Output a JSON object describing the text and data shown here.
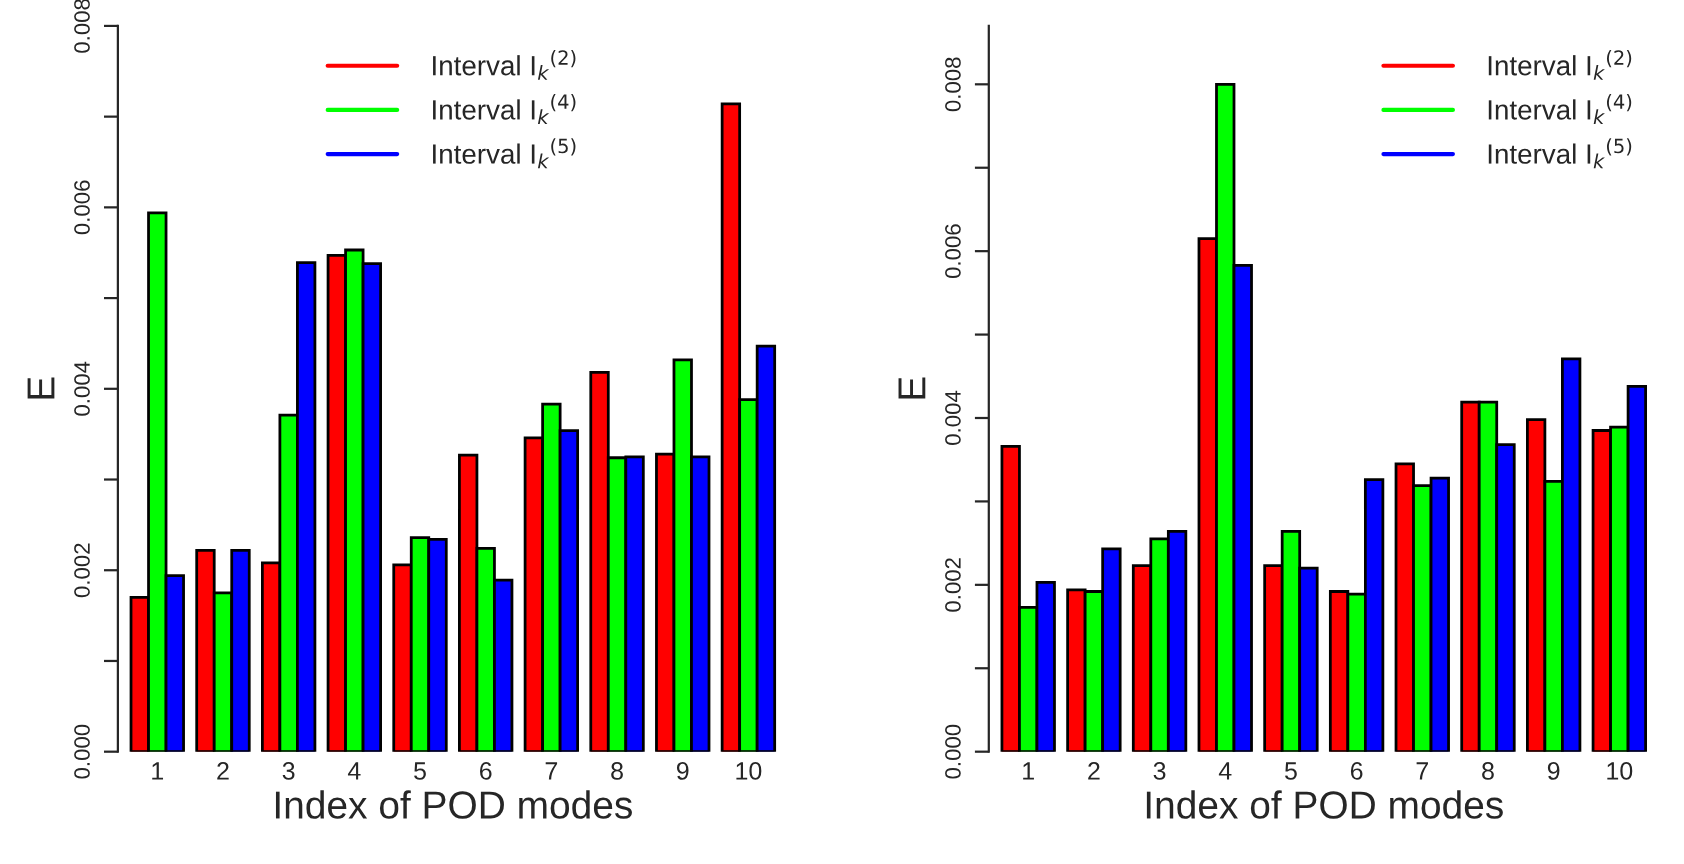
{
  "chart_data": [
    {
      "type": "bar",
      "xlabel": "Index of POD modes",
      "ylabel": "E",
      "categories": [
        "1",
        "2",
        "3",
        "4",
        "5",
        "6",
        "7",
        "8",
        "9",
        "10"
      ],
      "series": [
        {
          "name": "Interval I$_{k}$$^{(2)}$",
          "color": "#ff0000",
          "values": [
            0.0017,
            0.00222,
            0.00208,
            0.00547,
            0.00206,
            0.00327,
            0.00346,
            0.00418,
            0.00328,
            0.00714
          ]
        },
        {
          "name": "Interval I$_{k}$$^{(4)}$",
          "color": "#00ff00",
          "values": [
            0.00594,
            0.00175,
            0.00371,
            0.00553,
            0.00236,
            0.00224,
            0.00383,
            0.00324,
            0.00432,
            0.00388
          ]
        },
        {
          "name": "Interval I$_{k}$$^{(5)}$",
          "color": "#0000ff",
          "values": [
            0.00194,
            0.00222,
            0.00539,
            0.00538,
            0.00234,
            0.00189,
            0.00354,
            0.00325,
            0.00325,
            0.00447
          ]
        }
      ],
      "ylim": [
        0,
        0.008
      ],
      "yticks": [
        {
          "value": 0,
          "label": "0.000"
        },
        {
          "value": 0.001,
          "label": null
        },
        {
          "value": 0.002,
          "label": "0.002"
        },
        {
          "value": 0.003,
          "label": null
        },
        {
          "value": 0.004,
          "label": "0.004"
        },
        {
          "value": 0.005,
          "label": null
        },
        {
          "value": 0.006,
          "label": "0.006"
        },
        {
          "value": 0.007,
          "label": null
        },
        {
          "value": 0.008,
          "label": "0.008"
        }
      ],
      "grid": false,
      "legend": "top"
    },
    {
      "type": "bar",
      "xlabel": "Index of POD modes",
      "ylabel": "E",
      "categories": [
        "1",
        "2",
        "3",
        "4",
        "5",
        "6",
        "7",
        "8",
        "9",
        "10"
      ],
      "series": [
        {
          "name": "Interval I$_{k}$$^{(2)}$",
          "color": "#ff0000",
          "values": [
            0.00366,
            0.00194,
            0.00223,
            0.00615,
            0.00223,
            0.00192,
            0.00345,
            0.00419,
            0.00398,
            0.00385
          ]
        },
        {
          "name": "Interval I$_{k}$$^{(4)}$",
          "color": "#00ff00",
          "values": [
            0.00173,
            0.00192,
            0.00255,
            0.008,
            0.00264,
            0.00189,
            0.00319,
            0.00419,
            0.00324,
            0.00389
          ]
        },
        {
          "name": "Interval I$_{k}$$^{(5)}$",
          "color": "#0000ff",
          "values": [
            0.00203,
            0.00243,
            0.00264,
            0.00583,
            0.0022,
            0.00326,
            0.00328,
            0.00368,
            0.00471,
            0.00438
          ]
        }
      ],
      "ylim": [
        0,
        0.0087
      ],
      "yticks": [
        {
          "value": 0,
          "label": "0.000"
        },
        {
          "value": 0.001,
          "label": null
        },
        {
          "value": 0.002,
          "label": "0.002"
        },
        {
          "value": 0.003,
          "label": null
        },
        {
          "value": 0.004,
          "label": "0.004"
        },
        {
          "value": 0.005,
          "label": null
        },
        {
          "value": 0.006,
          "label": "0.006"
        },
        {
          "value": 0.007,
          "label": null
        },
        {
          "value": 0.008,
          "label": "0.008"
        }
      ],
      "grid": false,
      "legend": "top right"
    }
  ]
}
